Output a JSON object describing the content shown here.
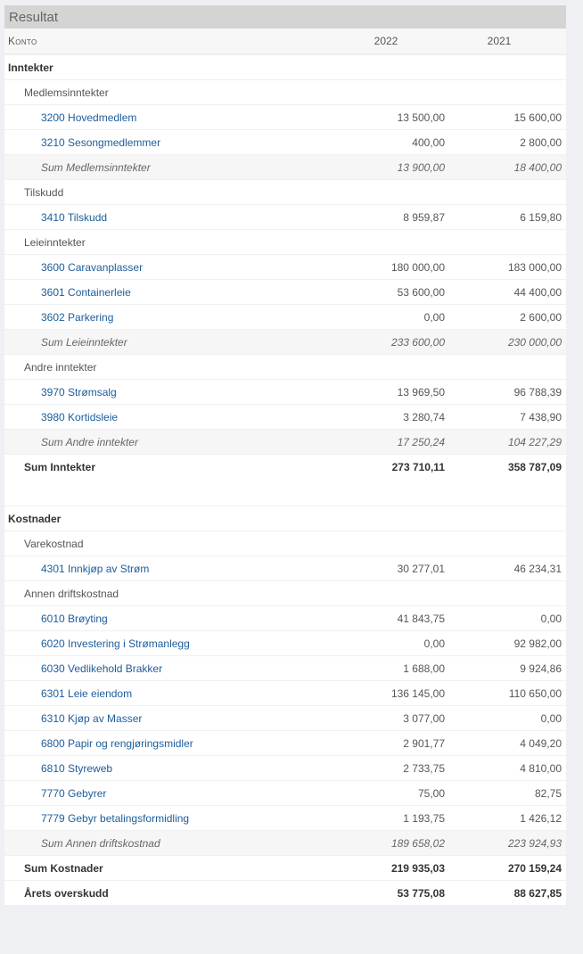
{
  "panel": {
    "title": "Resultat",
    "columns": {
      "account": "Konto",
      "year1": "2022",
      "year2": "2021"
    }
  },
  "rows": [
    {
      "type": "section",
      "name": "Inntekter",
      "v1": "",
      "v2": ""
    },
    {
      "type": "group",
      "name": "Medlemsinntekter",
      "v1": "",
      "v2": ""
    },
    {
      "type": "account",
      "name": "3200 Hovedmedlem",
      "v1": "13 500,00",
      "v2": "15 600,00"
    },
    {
      "type": "account",
      "name": "3210 Sesongmedlemmer",
      "v1": "400,00",
      "v2": "2 800,00"
    },
    {
      "type": "subtotal",
      "name": "Sum Medlemsinntekter",
      "v1": "13 900,00",
      "v2": "18 400,00"
    },
    {
      "type": "group",
      "name": "Tilskudd",
      "v1": "",
      "v2": ""
    },
    {
      "type": "account",
      "name": "3410 Tilskudd",
      "v1": "8 959,87",
      "v2": "6 159,80"
    },
    {
      "type": "group",
      "name": "Leieinntekter",
      "v1": "",
      "v2": ""
    },
    {
      "type": "account",
      "name": "3600 Caravanplasser",
      "v1": "180 000,00",
      "v2": "183 000,00"
    },
    {
      "type": "account",
      "name": "3601 Containerleie",
      "v1": "53 600,00",
      "v2": "44 400,00"
    },
    {
      "type": "account",
      "name": "3602 Parkering",
      "v1": "0,00",
      "v2": "2 600,00"
    },
    {
      "type": "subtotal",
      "name": "Sum Leieinntekter",
      "v1": "233 600,00",
      "v2": "230 000,00"
    },
    {
      "type": "group",
      "name": "Andre inntekter",
      "v1": "",
      "v2": ""
    },
    {
      "type": "account",
      "name": "3970 Strømsalg",
      "v1": "13 969,50",
      "v2": "96 788,39"
    },
    {
      "type": "account",
      "name": "3980 Kortidsleie",
      "v1": "3 280,74",
      "v2": "7 438,90"
    },
    {
      "type": "subtotal",
      "name": "Sum Andre inntekter",
      "v1": "17 250,24",
      "v2": "104 227,29"
    },
    {
      "type": "total",
      "name": "Sum Inntekter",
      "v1": "273 710,11",
      "v2": "358 787,09"
    },
    {
      "type": "spacer",
      "name": "",
      "v1": "",
      "v2": ""
    },
    {
      "type": "section",
      "name": "Kostnader",
      "v1": "",
      "v2": ""
    },
    {
      "type": "group",
      "name": "Varekostnad",
      "v1": "",
      "v2": ""
    },
    {
      "type": "account",
      "name": "4301 Innkjøp av Strøm",
      "v1": "30 277,01",
      "v2": "46 234,31"
    },
    {
      "type": "group",
      "name": "Annen driftskostnad",
      "v1": "",
      "v2": ""
    },
    {
      "type": "account",
      "name": "6010 Brøyting",
      "v1": "41 843,75",
      "v2": "0,00"
    },
    {
      "type": "account",
      "name": "6020 Investering i Strømanlegg",
      "v1": "0,00",
      "v2": "92 982,00"
    },
    {
      "type": "account",
      "name": "6030 Vedlikehold Brakker",
      "v1": "1 688,00",
      "v2": "9 924,86"
    },
    {
      "type": "account",
      "name": "6301 Leie eiendom",
      "v1": "136 145,00",
      "v2": "110 650,00"
    },
    {
      "type": "account",
      "name": "6310 Kjøp av Masser",
      "v1": "3 077,00",
      "v2": "0,00"
    },
    {
      "type": "account",
      "name": "6800 Papir og rengjøringsmidler",
      "v1": "2 901,77",
      "v2": "4 049,20"
    },
    {
      "type": "account",
      "name": "6810 Styreweb",
      "v1": "2 733,75",
      "v2": "4 810,00"
    },
    {
      "type": "account",
      "name": "7770 Gebyrer",
      "v1": "75,00",
      "v2": "82,75"
    },
    {
      "type": "account",
      "name": "7779 Gebyr betalingsformidling",
      "v1": "1 193,75",
      "v2": "1 426,12"
    },
    {
      "type": "subtotal",
      "name": "Sum Annen driftskostnad",
      "v1": "189 658,02",
      "v2": "223 924,93"
    },
    {
      "type": "total",
      "name": "Sum Kostnader",
      "v1": "219 935,03",
      "v2": "270 159,24"
    },
    {
      "type": "total",
      "name": "Årets overskudd",
      "v1": "53 775,08",
      "v2": "88 627,85"
    }
  ]
}
